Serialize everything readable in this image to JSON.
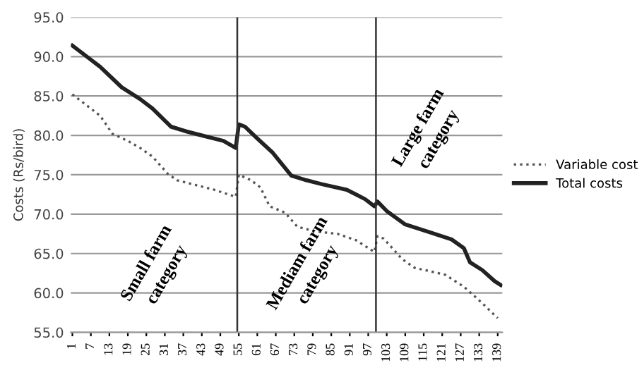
{
  "chart_data": {
    "type": "line",
    "ylabel": "Costs (Rs/bird)",
    "xlim": [
      0.5,
      140.5
    ],
    "xticks": [
      1,
      7,
      13,
      19,
      25,
      31,
      37,
      43,
      49,
      55,
      61,
      67,
      73,
      79,
      85,
      91,
      97,
      103,
      109,
      115,
      121,
      127,
      133,
      139
    ],
    "ylim": [
      55,
      95
    ],
    "yticks": [
      {
        "value": 55,
        "label": "55.0"
      },
      {
        "value": 60,
        "label": "60.0"
      },
      {
        "value": 65,
        "label": "65.0"
      },
      {
        "value": 70,
        "label": "70.0"
      },
      {
        "value": 75,
        "label": "75.0"
      },
      {
        "value": 80,
        "label": "80.0"
      },
      {
        "value": 85,
        "label": "85.0"
      },
      {
        "value": 90,
        "label": "90.0"
      },
      {
        "value": 95,
        "label": "95.0"
      }
    ],
    "grid": "y",
    "legend": "right",
    "series": [
      {
        "name": "Variable cost",
        "color": "#555555",
        "line_style": "dotted",
        "x": [
          1,
          10,
          14,
          19,
          23,
          27,
          32,
          35,
          41,
          47,
          54,
          55,
          59,
          62,
          65,
          70,
          74,
          80,
          87,
          93,
          99,
          100,
          102,
          108,
          112,
          122,
          128,
          134,
          139
        ],
        "values": [
          85.2,
          82.5,
          80.2,
          79.3,
          78.4,
          77.3,
          75.1,
          74.3,
          73.7,
          73.1,
          72.2,
          75.0,
          74.3,
          73.4,
          71.0,
          70.2,
          68.4,
          67.8,
          67.5,
          66.7,
          65.2,
          67.2,
          66.9,
          64.3,
          63.2,
          62.3,
          60.8,
          58.7,
          56.8
        ]
      },
      {
        "name": "Total costs",
        "color": "#222222",
        "line_style": "solid",
        "x": [
          1,
          6,
          10,
          17,
          23,
          27,
          33,
          38,
          44,
          50,
          54,
          55,
          57,
          61,
          66,
          72,
          77,
          82,
          90,
          96,
          99,
          100,
          103,
          109,
          117,
          124,
          128,
          130,
          134,
          138,
          140
        ],
        "values": [
          91.4,
          89.9,
          88.7,
          86.1,
          84.6,
          83.4,
          81.1,
          80.5,
          79.9,
          79.3,
          78.4,
          81.4,
          81.1,
          79.6,
          77.8,
          74.9,
          74.3,
          73.8,
          73.1,
          71.9,
          71.0,
          71.6,
          70.4,
          68.7,
          67.7,
          66.8,
          65.7,
          63.9,
          62.9,
          61.5,
          61.0
        ]
      }
    ],
    "ref_lines": [
      {
        "axis": "x",
        "value": 54.5,
        "color": "#333333"
      },
      {
        "axis": "x",
        "value": 99.5,
        "color": "#333333"
      }
    ],
    "annotations": [
      "Small farm\ncategory",
      "Mediam farm\ncategory",
      "Large farm\ncategory"
    ]
  }
}
